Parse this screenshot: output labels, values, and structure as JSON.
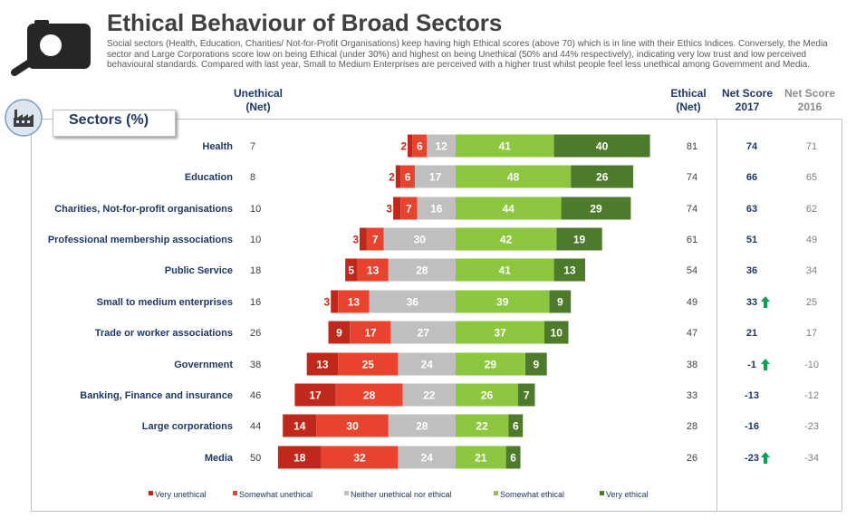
{
  "title": "Ethical Behaviour of Broad Sectors",
  "subtitle": "Social sectors (Health, Education, Charities/ Not-for-Profit Organisations) keep having high Ethical scores (above 70) which is in line with their Ethics Indices. Conversely, the Media sector and Large Corporations score low on being Ethical (under 30%) and highest on being Unethical (50% and 44% respectively), indicating very low trust and low perceived behavioural standards. Compared with last year, Small to Medium Enterprises are perceived with a higher trust whilst people feel less unethical among Government and Media.",
  "sectors_label": "Sectors (%)",
  "headers": {
    "unethical": "Unethical (Net)",
    "ethical": "Ethical (Net)",
    "net2017": "Net Score 2017",
    "net2016": "Net Score 2016"
  },
  "chart_data": {
    "type": "bar",
    "orientation": "horizontal-diverging",
    "categories": [
      "Health",
      "Education",
      "Charities, Not-for-profit organisations",
      "Professional membership associations",
      "Public Service",
      "Small to medium enterprises",
      "Trade or worker associations",
      "Government",
      "Banking, Finance and insurance",
      "Large corporations",
      "Media"
    ],
    "series": [
      {
        "name": "Very unethical",
        "color": "#c0281b",
        "values": [
          2,
          2,
          3,
          3,
          5,
          3,
          9,
          13,
          17,
          14,
          18
        ]
      },
      {
        "name": "Somewhat unethical",
        "color": "#e8432f",
        "values": [
          6,
          6,
          7,
          7,
          13,
          13,
          17,
          25,
          28,
          30,
          32
        ]
      },
      {
        "name": "Neither unethical nor ethical",
        "color": "#bfbfbf",
        "values": [
          12,
          17,
          16,
          30,
          28,
          36,
          27,
          24,
          22,
          28,
          24
        ]
      },
      {
        "name": "Somewhat ethical",
        "color": "#8dc63f",
        "values": [
          41,
          48,
          44,
          42,
          41,
          39,
          37,
          29,
          26,
          22,
          21
        ]
      },
      {
        "name": "Very ethical",
        "color": "#4e7a2c",
        "values": [
          40,
          26,
          29,
          19,
          13,
          9,
          10,
          9,
          7,
          6,
          6
        ]
      }
    ],
    "unethical_net": [
      7,
      8,
      10,
      10,
      18,
      16,
      26,
      38,
      46,
      44,
      50
    ],
    "ethical_net": [
      81,
      74,
      74,
      61,
      54,
      49,
      47,
      38,
      33,
      28,
      26
    ],
    "net_score_2017": [
      74,
      66,
      63,
      51,
      36,
      33,
      21,
      -1,
      -13,
      -16,
      -23
    ],
    "net_score_2016": [
      71,
      65,
      62,
      49,
      34,
      25,
      17,
      -10,
      -12,
      -23,
      -34
    ],
    "trend_up": [
      false,
      false,
      false,
      false,
      false,
      true,
      false,
      true,
      false,
      false,
      true
    ],
    "legend_position": "bottom"
  },
  "colors": {
    "title": "#404040",
    "label": "#1f3864",
    "trend_arrow": "#00a651"
  }
}
